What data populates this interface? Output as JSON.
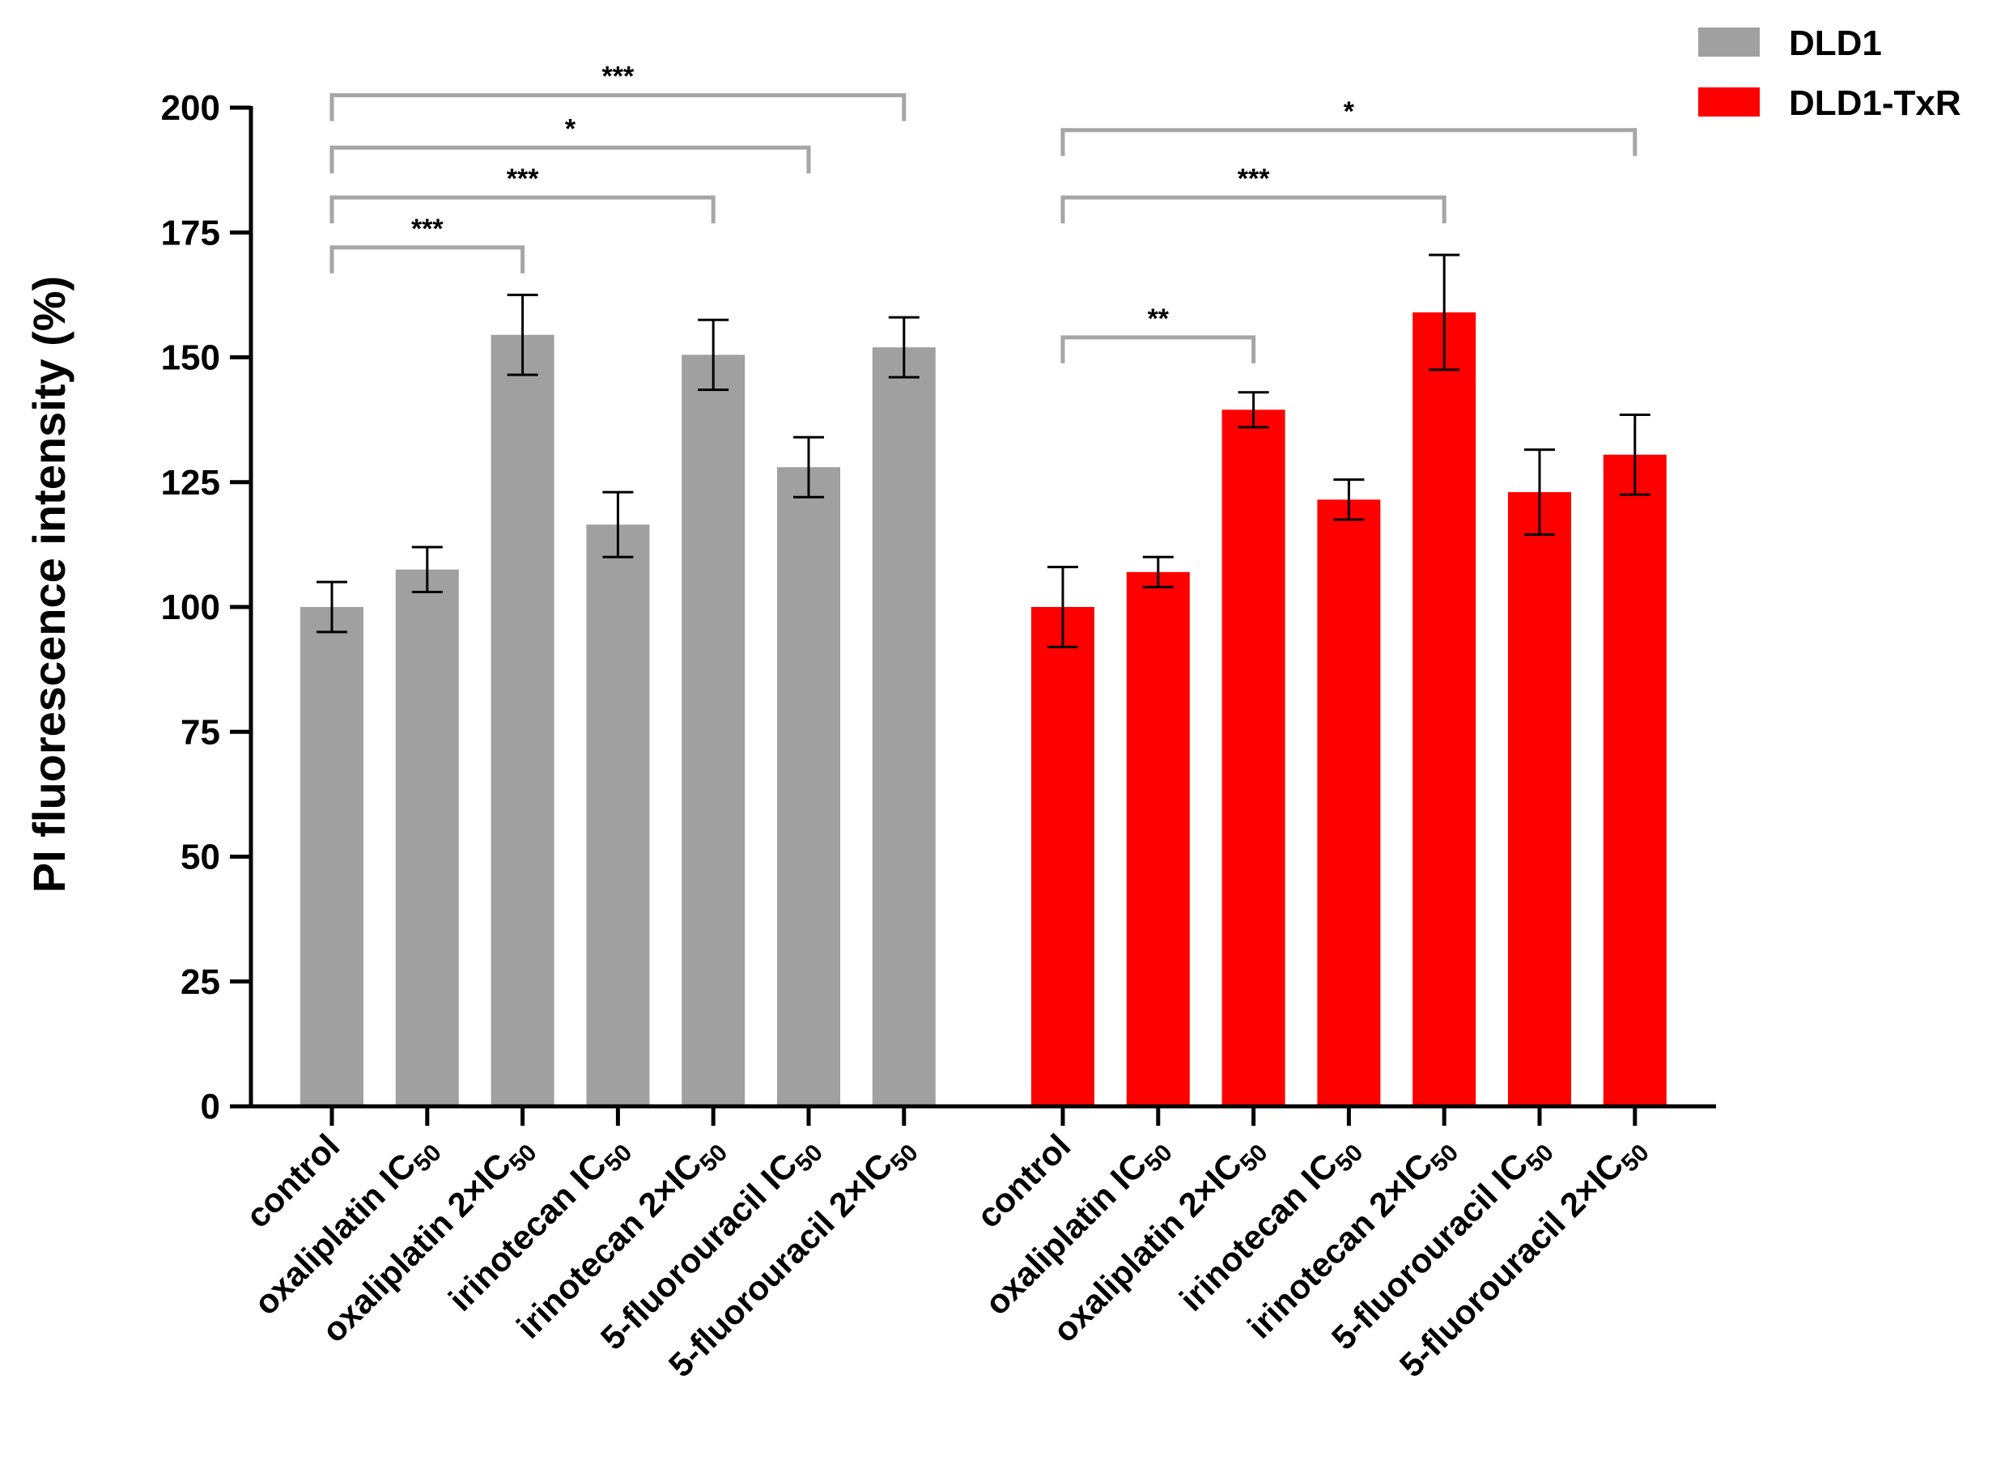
{
  "chart_data": {
    "type": "bar",
    "title": "",
    "xlabel": "",
    "ylabel": "PI fluorescence intensity (%)",
    "ylim": [
      0,
      200
    ],
    "yticks": [
      0,
      25,
      50,
      75,
      100,
      125,
      150,
      175,
      200
    ],
    "categories": [
      {
        "main": "control",
        "sub": ""
      },
      {
        "main": "oxaliplatin IC",
        "sub": "50"
      },
      {
        "main": "oxaliplatin 2×IC",
        "sub": "50"
      },
      {
        "main": "irinotecan IC",
        "sub": "50"
      },
      {
        "main": "irinotecan 2×IC",
        "sub": "50"
      },
      {
        "main": "5-fluorouracil IC",
        "sub": "50"
      },
      {
        "main": "5-fluorouracil 2×IC",
        "sub": "50"
      }
    ],
    "series": [
      {
        "name": "DLD1",
        "color": "#a0a0a0",
        "values": [
          100,
          107.5,
          154.5,
          116.5,
          150.5,
          128,
          152
        ],
        "errors": [
          5,
          4.5,
          8,
          6.5,
          7,
          6,
          6
        ]
      },
      {
        "name": "DLD1-TxR",
        "color": "#ff0000",
        "values": [
          100,
          107,
          139.5,
          121.5,
          159,
          123,
          130.5
        ],
        "errors": [
          8,
          3,
          3.5,
          4,
          11.5,
          8.5,
          8
        ]
      }
    ],
    "significance": [
      {
        "group": 0,
        "from": 0,
        "to": 2,
        "label": "***",
        "y": 172
      },
      {
        "group": 0,
        "from": 0,
        "to": 4,
        "label": "***",
        "y": 182
      },
      {
        "group": 0,
        "from": 0,
        "to": 5,
        "label": "*",
        "y": 192
      },
      {
        "group": 0,
        "from": 0,
        "to": 6,
        "label": "***",
        "y": 202.5
      },
      {
        "group": 1,
        "from": 0,
        "to": 2,
        "label": "**",
        "y": 154
      },
      {
        "group": 1,
        "from": 0,
        "to": 4,
        "label": "***",
        "y": 182
      },
      {
        "group": 1,
        "from": 0,
        "to": 6,
        "label": "*",
        "y": 195.5
      }
    ],
    "legend_position": "top-right"
  }
}
